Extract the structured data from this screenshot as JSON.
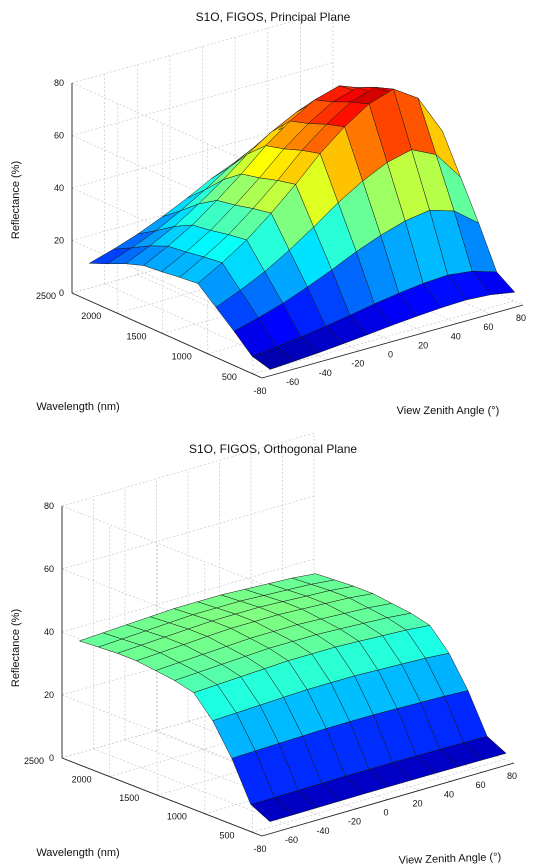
{
  "chart_data": [
    {
      "type": "surface",
      "title": "S1O, FIGOS, Principal Plane",
      "xlabel": "View Zenith Angle (°)",
      "ylabel": "Wavelength (nm)",
      "zlabel": "Reflectance (%)",
      "x_ticks": [
        "-80",
        "-60",
        "-40",
        "-20",
        "0",
        "20",
        "40",
        "60",
        "80"
      ],
      "y_ticks": [
        "500",
        "1000",
        "1500",
        "2000",
        "2500"
      ],
      "z_ticks": [
        "0",
        "20",
        "40",
        "60",
        "80"
      ],
      "xlim": [
        -80,
        80
      ],
      "ylim": [
        400,
        2500
      ],
      "zlim": [
        0,
        80
      ],
      "grid": true,
      "colormap": "jet",
      "x": [
        -75,
        -60,
        -45,
        -30,
        -15,
        0,
        15,
        30,
        45,
        60,
        75
      ],
      "y": [
        400,
        600,
        800,
        1000,
        1200,
        1400,
        1600,
        1800,
        2000,
        2200,
        2400
      ],
      "z_profile_wavelength": [
        0.1,
        0.18,
        0.45,
        0.7,
        0.95,
        0.92,
        0.88,
        0.85,
        0.75,
        0.62,
        0.5
      ],
      "z_profile_angle": [
        0.3,
        0.37,
        0.45,
        0.55,
        0.66,
        0.78,
        0.88,
        0.96,
        1.0,
        0.92,
        0.72
      ],
      "z_peak": 80
    },
    {
      "type": "surface",
      "title": "S1O, FIGOS, Orthogonal Plane",
      "xlabel": "View Zenith Angle (°)",
      "ylabel": "Wavelength (nm)",
      "zlabel": "Reflectance (%)",
      "x_ticks": [
        "-80",
        "-60",
        "-40",
        "-20",
        "0",
        "20",
        "40",
        "60",
        "80"
      ],
      "y_ticks": [
        "500",
        "1000",
        "1500",
        "2000",
        "2500"
      ],
      "z_ticks": [
        "0",
        "20",
        "40",
        "60",
        "80"
      ],
      "xlim": [
        -80,
        80
      ],
      "ylim": [
        400,
        2500
      ],
      "zlim": [
        0,
        80
      ],
      "grid": true,
      "colormap": "jet",
      "x": [
        -75,
        -60,
        -45,
        -30,
        -15,
        0,
        15,
        30,
        45,
        60,
        75
      ],
      "y": [
        400,
        600,
        800,
        1000,
        1200,
        1400,
        1600,
        1800,
        2000,
        2200,
        2400
      ],
      "z_profile_wavelength": [
        0.1,
        0.18,
        0.5,
        0.75,
        0.92,
        0.96,
        0.98,
        1.0,
        1.0,
        0.99,
        0.98
      ],
      "z_profile_angle": [
        0.96,
        0.97,
        0.98,
        0.99,
        1.0,
        1.0,
        1.0,
        0.99,
        0.98,
        0.97,
        0.95
      ],
      "z_peak": 40
    }
  ]
}
